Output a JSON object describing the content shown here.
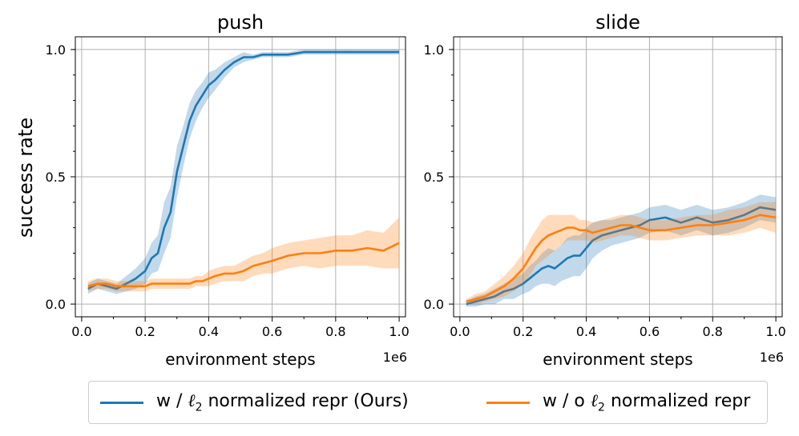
{
  "colors": {
    "ours": "#1f77b4",
    "baseline": "#ff7f0e",
    "grid": "#b0b0b0"
  },
  "y_axis_label": "success rate",
  "legend": [
    {
      "series": "ours",
      "prefix": "w / ",
      "ell": "ℓ",
      "sub": "2",
      "suffix": " normalized repr (Ours)"
    },
    {
      "series": "baseline",
      "prefix": "w / o ",
      "ell": "ℓ",
      "sub": "2",
      "suffix": " normalized repr"
    }
  ],
  "chart_data": [
    {
      "type": "line",
      "title": "push",
      "xlabel": "environment steps",
      "ylabel": "success rate",
      "x_offset_label": "1e6",
      "xlim": [
        -0.02,
        1.02
      ],
      "ylim": [
        -0.05,
        1.05
      ],
      "xticks": [
        "0.0",
        "0.2",
        "0.4",
        "0.6",
        "0.8",
        "1.0"
      ],
      "yticks": [
        "0.0",
        "0.5",
        "1.0"
      ],
      "x": [
        0.02,
        0.05,
        0.08,
        0.11,
        0.14,
        0.17,
        0.2,
        0.22,
        0.24,
        0.26,
        0.28,
        0.3,
        0.32,
        0.34,
        0.36,
        0.38,
        0.4,
        0.42,
        0.45,
        0.48,
        0.51,
        0.54,
        0.57,
        0.6,
        0.65,
        0.7,
        0.75,
        0.8,
        0.85,
        0.9,
        0.95,
        1.0
      ],
      "series": [
        {
          "name": "w / ℓ2 normalized repr (Ours)",
          "key": "ours",
          "values": [
            0.06,
            0.08,
            0.07,
            0.06,
            0.08,
            0.1,
            0.13,
            0.18,
            0.2,
            0.3,
            0.36,
            0.52,
            0.62,
            0.72,
            0.78,
            0.82,
            0.86,
            0.88,
            0.92,
            0.95,
            0.97,
            0.97,
            0.98,
            0.98,
            0.98,
            0.99,
            0.99,
            0.99,
            0.99,
            0.99,
            0.99,
            0.99
          ],
          "spread": [
            0.02,
            0.02,
            0.02,
            0.02,
            0.03,
            0.04,
            0.05,
            0.06,
            0.07,
            0.1,
            0.1,
            0.1,
            0.08,
            0.07,
            0.06,
            0.05,
            0.05,
            0.04,
            0.03,
            0.02,
            0.02,
            0.01,
            0.01,
            0.01,
            0.01,
            0.01,
            0.01,
            0.01,
            0.01,
            0.01,
            0.01,
            0.01
          ]
        },
        {
          "name": "w / o ℓ2 normalized repr",
          "key": "baseline",
          "values": [
            0.07,
            0.08,
            0.08,
            0.07,
            0.07,
            0.07,
            0.07,
            0.08,
            0.08,
            0.08,
            0.08,
            0.08,
            0.08,
            0.08,
            0.09,
            0.09,
            0.1,
            0.11,
            0.12,
            0.12,
            0.13,
            0.15,
            0.16,
            0.17,
            0.19,
            0.2,
            0.2,
            0.21,
            0.21,
            0.22,
            0.21,
            0.24
          ],
          "spread": [
            0.02,
            0.02,
            0.02,
            0.02,
            0.02,
            0.02,
            0.02,
            0.02,
            0.02,
            0.02,
            0.02,
            0.02,
            0.02,
            0.02,
            0.02,
            0.02,
            0.03,
            0.03,
            0.03,
            0.03,
            0.04,
            0.04,
            0.04,
            0.05,
            0.05,
            0.05,
            0.06,
            0.06,
            0.06,
            0.07,
            0.07,
            0.1
          ]
        }
      ]
    },
    {
      "type": "line",
      "title": "slide",
      "xlabel": "environment steps",
      "ylabel": "",
      "x_offset_label": "1e6",
      "xlim": [
        -0.02,
        1.02
      ],
      "ylim": [
        -0.05,
        1.05
      ],
      "xticks": [
        "0.0",
        "0.2",
        "0.4",
        "0.6",
        "0.8",
        "1.0"
      ],
      "yticks": [
        "0.0",
        "0.5",
        "1.0"
      ],
      "x": [
        0.02,
        0.05,
        0.08,
        0.11,
        0.14,
        0.17,
        0.2,
        0.22,
        0.24,
        0.26,
        0.28,
        0.3,
        0.32,
        0.34,
        0.36,
        0.38,
        0.4,
        0.42,
        0.45,
        0.48,
        0.51,
        0.54,
        0.57,
        0.6,
        0.65,
        0.7,
        0.75,
        0.8,
        0.85,
        0.9,
        0.95,
        1.0
      ],
      "series": [
        {
          "name": "w / ℓ2 normalized repr (Ours)",
          "key": "ours",
          "values": [
            0.0,
            0.01,
            0.02,
            0.03,
            0.05,
            0.06,
            0.08,
            0.1,
            0.12,
            0.14,
            0.15,
            0.14,
            0.16,
            0.18,
            0.19,
            0.19,
            0.22,
            0.25,
            0.27,
            0.28,
            0.29,
            0.3,
            0.31,
            0.33,
            0.34,
            0.32,
            0.34,
            0.32,
            0.33,
            0.35,
            0.38,
            0.37
          ],
          "spread": [
            0.01,
            0.02,
            0.02,
            0.03,
            0.03,
            0.04,
            0.04,
            0.05,
            0.05,
            0.06,
            0.07,
            0.07,
            0.07,
            0.08,
            0.08,
            0.08,
            0.08,
            0.07,
            0.06,
            0.05,
            0.05,
            0.05,
            0.05,
            0.05,
            0.05,
            0.05,
            0.05,
            0.05,
            0.05,
            0.05,
            0.05,
            0.05
          ]
        },
        {
          "name": "w / o ℓ2 normalized repr",
          "key": "baseline",
          "values": [
            0.01,
            0.02,
            0.03,
            0.05,
            0.07,
            0.1,
            0.14,
            0.18,
            0.22,
            0.25,
            0.27,
            0.28,
            0.29,
            0.3,
            0.3,
            0.29,
            0.29,
            0.28,
            0.29,
            0.3,
            0.31,
            0.31,
            0.3,
            0.29,
            0.29,
            0.3,
            0.31,
            0.31,
            0.32,
            0.33,
            0.35,
            0.34
          ],
          "spread": [
            0.01,
            0.02,
            0.02,
            0.03,
            0.04,
            0.05,
            0.06,
            0.07,
            0.07,
            0.08,
            0.08,
            0.07,
            0.06,
            0.05,
            0.05,
            0.04,
            0.04,
            0.04,
            0.04,
            0.04,
            0.04,
            0.04,
            0.04,
            0.04,
            0.04,
            0.04,
            0.04,
            0.04,
            0.05,
            0.05,
            0.05,
            0.06
          ]
        }
      ]
    }
  ]
}
